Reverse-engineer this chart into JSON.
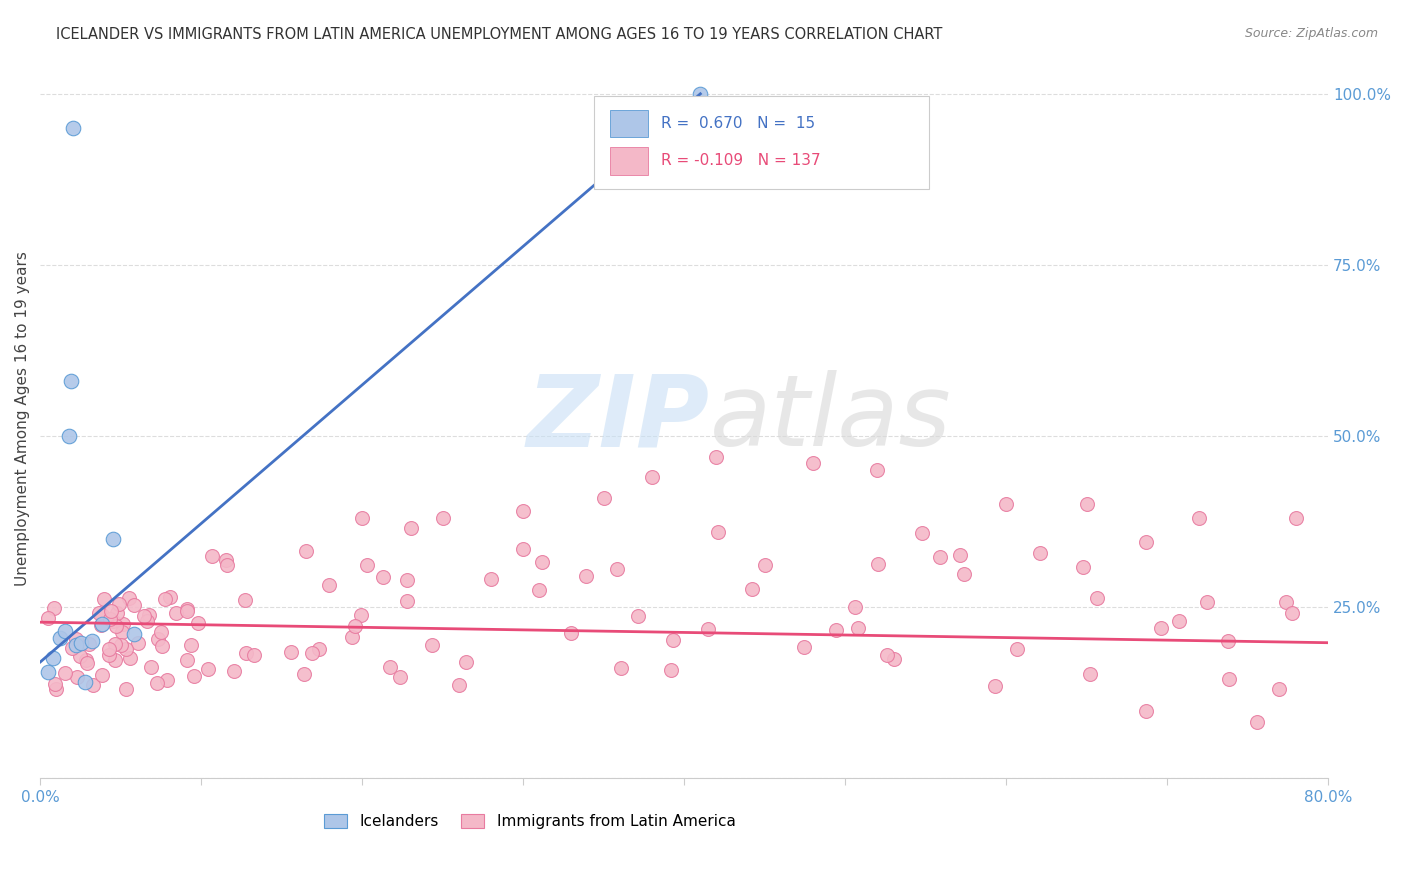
{
  "title": "ICELANDER VS IMMIGRANTS FROM LATIN AMERICA UNEMPLOYMENT AMONG AGES 16 TO 19 YEARS CORRELATION CHART",
  "source": "Source: ZipAtlas.com",
  "ylabel": "Unemployment Among Ages 16 to 19 years",
  "xlim": [
    0.0,
    0.8
  ],
  "ylim": [
    0.0,
    1.05
  ],
  "xticks": [
    0.0,
    0.1,
    0.2,
    0.3,
    0.4,
    0.5,
    0.6,
    0.7,
    0.8
  ],
  "xticklabels": [
    "0.0%",
    "",
    "",
    "",
    "",
    "",
    "",
    "",
    "80.0%"
  ],
  "yticks_right": [
    0.0,
    0.25,
    0.5,
    0.75,
    1.0
  ],
  "yticklabels_right": [
    "",
    "25.0%",
    "50.0%",
    "75.0%",
    "100.0%"
  ],
  "grid_color": "#dddddd",
  "background_color": "#ffffff",
  "icelander_color": "#aec6e8",
  "icelander_edge_color": "#5b9bd5",
  "latin_color": "#f4b8c8",
  "latin_edge_color": "#e87ba0",
  "blue_line_color": "#4472c4",
  "pink_line_color": "#e84b78",
  "legend_label_blue": "Icelanders",
  "legend_label_pink": "Immigrants from Latin America",
  "icelander_x": [
    0.005,
    0.008,
    0.012,
    0.015,
    0.018,
    0.019,
    0.02,
    0.022,
    0.025,
    0.028,
    0.032,
    0.038,
    0.045,
    0.058,
    0.41
  ],
  "icelander_y": [
    0.155,
    0.175,
    0.205,
    0.215,
    0.5,
    0.58,
    0.95,
    0.195,
    0.198,
    0.14,
    0.2,
    0.225,
    0.35,
    0.21,
    1.0
  ],
  "blue_trend_x": [
    0.0,
    0.41
  ],
  "blue_trend_y": [
    0.17,
    1.0
  ],
  "pink_trend_x": [
    0.0,
    0.8
  ],
  "pink_trend_y": [
    0.228,
    0.198
  ]
}
